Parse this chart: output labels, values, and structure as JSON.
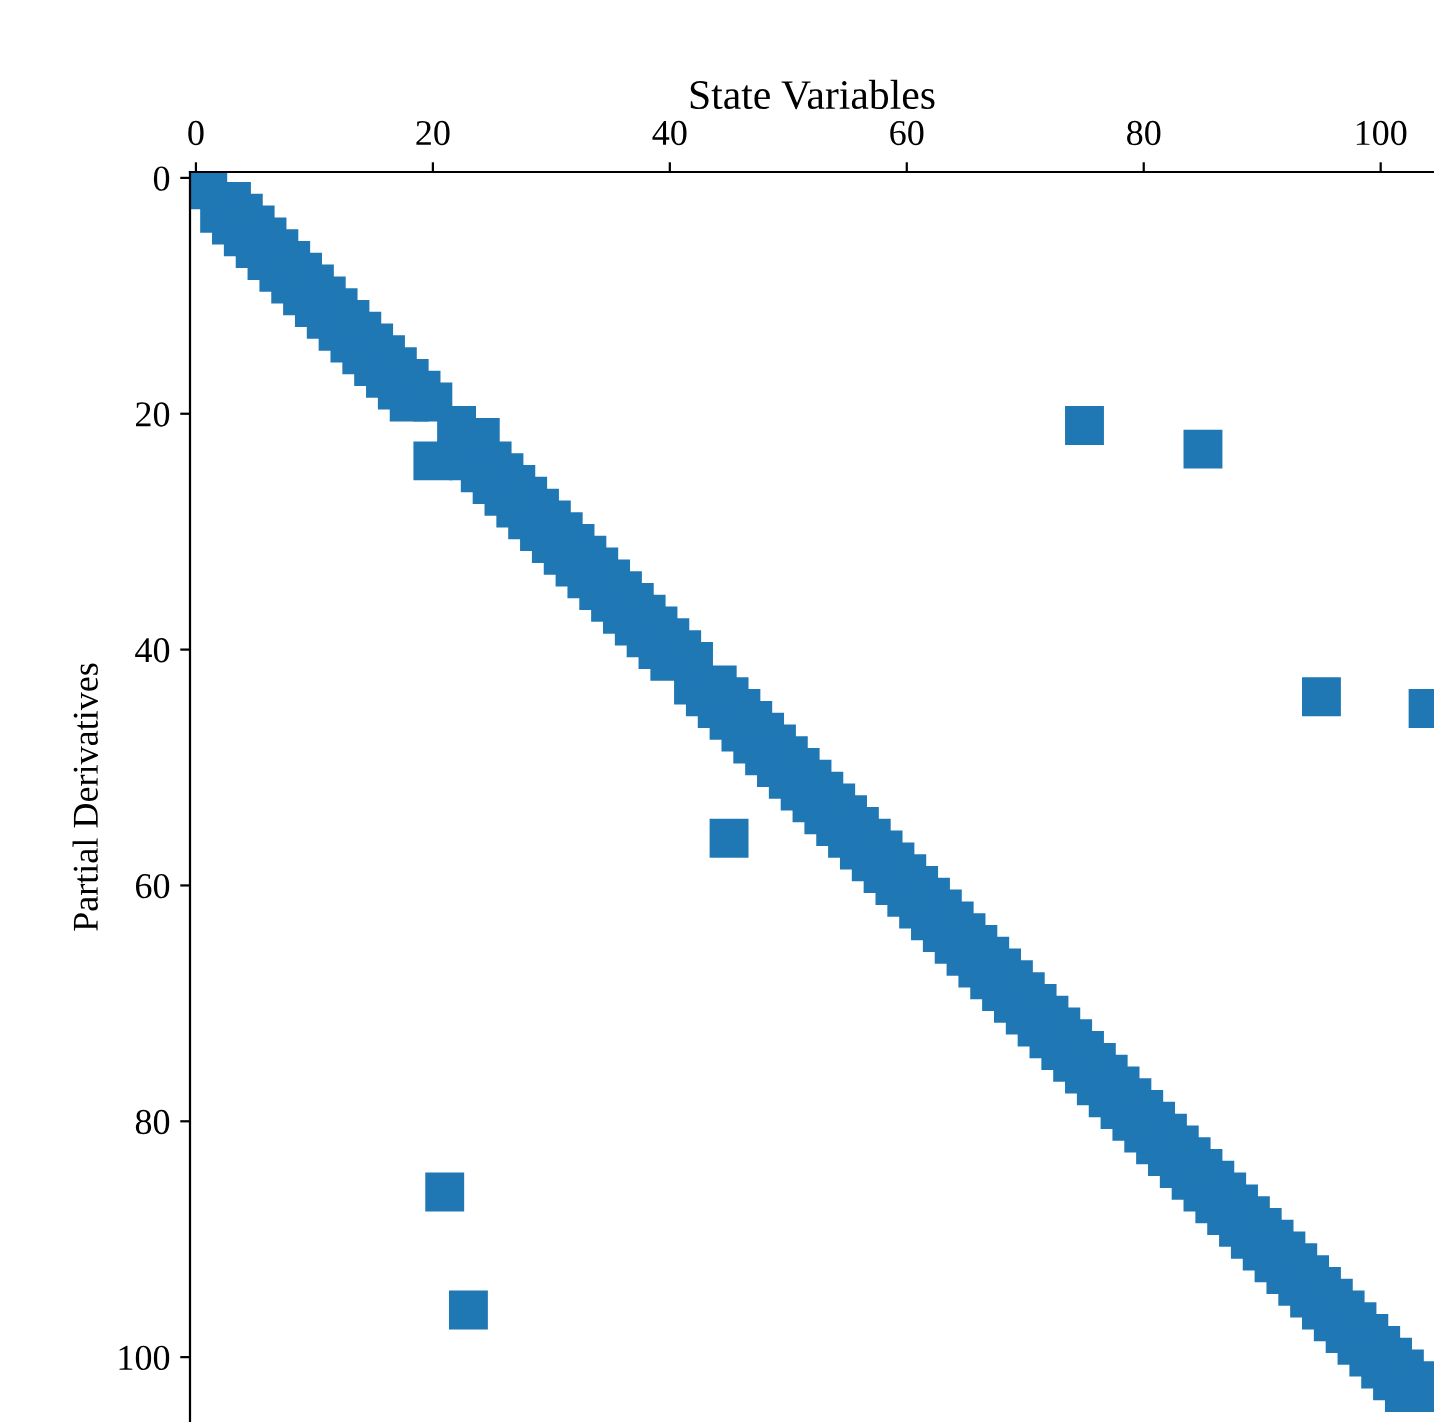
{
  "chart_data": {
    "type": "scatter",
    "xlabel": "State Variables",
    "ylabel": "Partial Derivatives",
    "xlim": [
      -0.5,
      104.5
    ],
    "ylim": [
      105.5,
      -0.5
    ],
    "xticks": [
      0,
      20,
      40,
      60,
      80,
      100
    ],
    "yticks": [
      0,
      20,
      40,
      60,
      80,
      100
    ],
    "marker": "square",
    "grid": false,
    "legend": false,
    "series": [
      {
        "color": "#1f77b4",
        "x": [
          102,
          104,
          101,
          103,
          100,
          102,
          99,
          101,
          98,
          100,
          97,
          99,
          96,
          98,
          95,
          97,
          94,
          96,
          93,
          95,
          92,
          94,
          91,
          93,
          90,
          92,
          89,
          91,
          88,
          90,
          87,
          89,
          86,
          88,
          85,
          87,
          84,
          86,
          83,
          85,
          82,
          84,
          81,
          83,
          80,
          82,
          79,
          81,
          78,
          80,
          77,
          79,
          76,
          78,
          75,
          77,
          74,
          76,
          73,
          75,
          72,
          74,
          71,
          73,
          70,
          72,
          69,
          71,
          68,
          70,
          67,
          69,
          66,
          68,
          65,
          67,
          64,
          66,
          63,
          65,
          62,
          64,
          61,
          63,
          60,
          62,
          59,
          61,
          58,
          60,
          57,
          59,
          56,
          58,
          55,
          57,
          54,
          56,
          53,
          55,
          52,
          54,
          51,
          53,
          50,
          52,
          49,
          51,
          48,
          50,
          47,
          49,
          46,
          48,
          45,
          47,
          44,
          46,
          43,
          45,
          42,
          44,
          40,
          42,
          39,
          41,
          38,
          40,
          37,
          39,
          36,
          38,
          35,
          37,
          34,
          36,
          33,
          35,
          32,
          34,
          31,
          33,
          30,
          32,
          29,
          31,
          28,
          30,
          27,
          29,
          26,
          28,
          25,
          27,
          24,
          26,
          23,
          25,
          24,
          18,
          20,
          17,
          19,
          16,
          18,
          15,
          17,
          14,
          16,
          13,
          15,
          12,
          14,
          11,
          13,
          10,
          12,
          9,
          11,
          8,
          10,
          7,
          9,
          6,
          8,
          5,
          7,
          4,
          6,
          3,
          5,
          2,
          4,
          3,
          1,
          75,
          85,
          20,
          22,
          95,
          104,
          45,
          21,
          23
        ],
        "values": [
          103,
          103,
          102,
          102,
          101,
          101,
          100,
          100,
          99,
          99,
          98,
          98,
          97,
          97,
          96,
          96,
          95,
          95,
          94,
          94,
          93,
          93,
          92,
          92,
          91,
          91,
          90,
          90,
          89,
          89,
          88,
          88,
          87,
          87,
          86,
          86,
          85,
          85,
          84,
          84,
          83,
          83,
          82,
          82,
          81,
          81,
          80,
          80,
          79,
          79,
          78,
          78,
          77,
          77,
          76,
          76,
          75,
          75,
          74,
          74,
          73,
          73,
          72,
          72,
          71,
          71,
          70,
          70,
          69,
          69,
          68,
          68,
          67,
          67,
          66,
          66,
          65,
          65,
          64,
          64,
          63,
          63,
          62,
          62,
          61,
          61,
          60,
          60,
          59,
          59,
          58,
          58,
          57,
          57,
          56,
          56,
          55,
          55,
          54,
          54,
          53,
          53,
          52,
          52,
          51,
          51,
          50,
          50,
          49,
          49,
          48,
          48,
          47,
          47,
          46,
          46,
          45,
          45,
          44,
          44,
          43,
          43,
          41,
          41,
          40,
          40,
          39,
          39,
          38,
          38,
          37,
          37,
          36,
          36,
          35,
          35,
          34,
          34,
          33,
          33,
          32,
          32,
          31,
          31,
          30,
          30,
          29,
          29,
          28,
          28,
          27,
          27,
          26,
          26,
          25,
          25,
          24,
          24,
          22,
          19,
          19,
          18,
          18,
          17,
          17,
          16,
          16,
          15,
          15,
          14,
          14,
          13,
          13,
          12,
          12,
          11,
          11,
          10,
          10,
          9,
          9,
          8,
          8,
          7,
          7,
          6,
          6,
          5,
          5,
          4,
          4,
          3,
          3,
          2,
          1,
          21,
          23,
          24,
          21,
          44,
          45,
          56,
          86,
          96
        ]
      }
    ]
  }
}
